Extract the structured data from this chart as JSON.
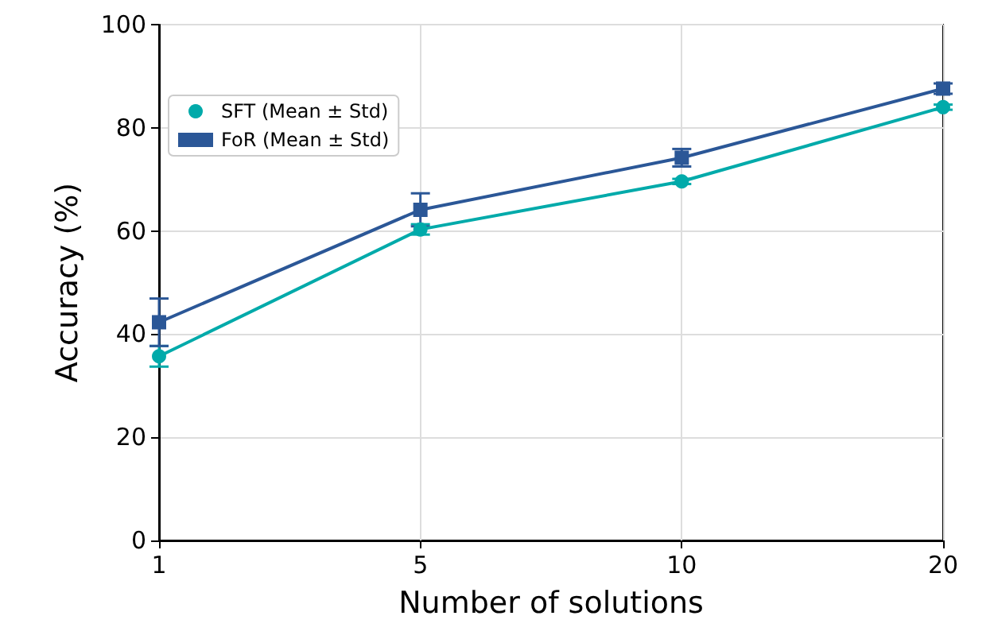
{
  "chart_data": {
    "type": "line",
    "xlabel": "Number of solutions",
    "ylabel": "Accuracy (%)",
    "categories": [
      "1",
      "5",
      "10",
      "20"
    ],
    "series": [
      {
        "name": "SFT (Mean ± Std)",
        "color": "#00aaaa",
        "marker": "circle",
        "values": [
          35.7,
          60.3,
          69.6,
          84.0
        ],
        "errors": [
          2.0,
          1.0,
          0.5,
          0.5
        ]
      },
      {
        "name": "FoR (Mean ± Std)",
        "color": "#2b5797",
        "marker": "square",
        "values": [
          42.3,
          64.1,
          74.2,
          87.6
        ],
        "errors": [
          4.6,
          3.2,
          1.7,
          1.0
        ]
      }
    ],
    "ylim": [
      0,
      100
    ],
    "yticks": [
      0,
      20,
      40,
      60,
      80,
      100
    ],
    "grid": true,
    "legend": "top left",
    "line_style": "solid"
  }
}
